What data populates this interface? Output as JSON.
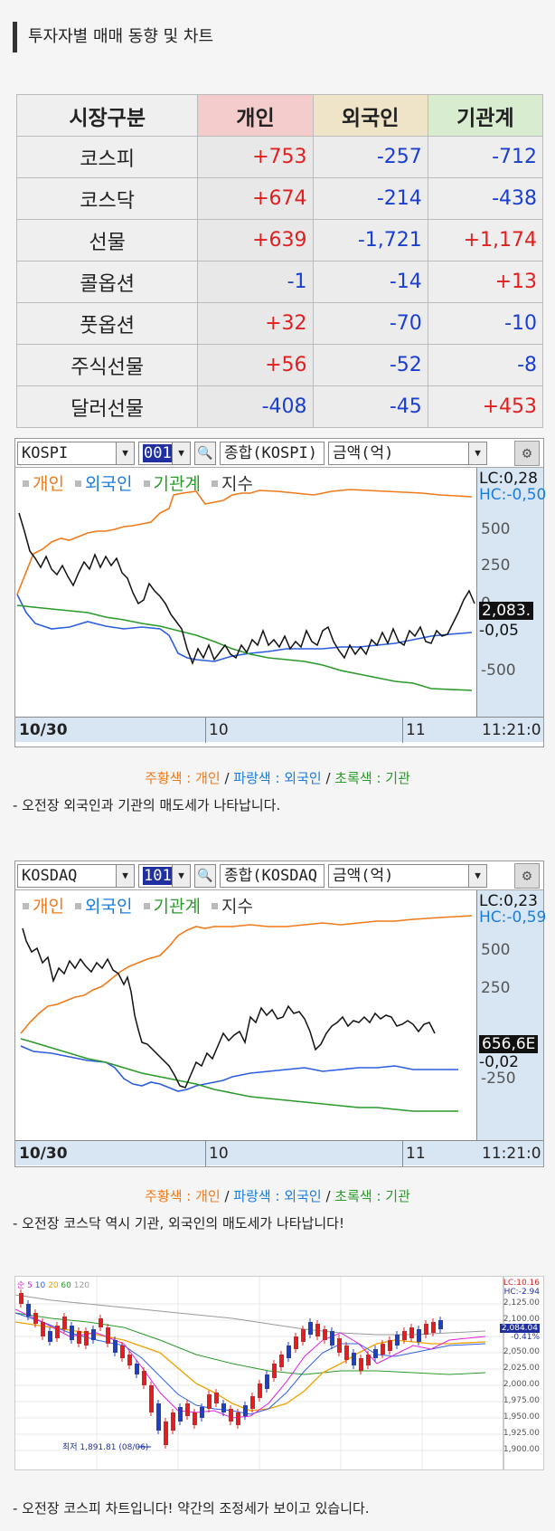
{
  "title": "투자자별 매매 동향 및 차트",
  "table": {
    "headers": [
      "시장구분",
      "개인",
      "외국인",
      "기관계"
    ],
    "rows": [
      {
        "label": "코스피",
        "ind": "+753",
        "frn": "-257",
        "ins": "-712"
      },
      {
        "label": "코스닥",
        "ind": "+674",
        "frn": "-214",
        "ins": "-438"
      },
      {
        "label": "선물",
        "ind": "+639",
        "frn": "-1,721",
        "ins": "+1,174"
      },
      {
        "label": "콜옵션",
        "ind": "-1",
        "frn": "-14",
        "ins": "+13"
      },
      {
        "label": "풋옵션",
        "ind": "+32",
        "frn": "-70",
        "ins": "-10"
      },
      {
        "label": "주식선물",
        "ind": "+56",
        "frn": "-52",
        "ins": "-8"
      },
      {
        "label": "달러선물",
        "ind": "-408",
        "frn": "-45",
        "ins": "+453"
      }
    ]
  },
  "kospi_chart": {
    "market": "KOSPI",
    "code": "001",
    "type": "종합(KOSPI)",
    "unit": "금액(억)",
    "legend": [
      "개인",
      "외국인",
      "기관계",
      "지수"
    ],
    "lc": "LC:0,28",
    "hc": "HC:-0,50",
    "yticks": [
      "500",
      "250",
      "0",
      "-250",
      "-500"
    ],
    "price": "2,083.",
    "pct": "-0,05",
    "xlabels": [
      "10/30",
      "10",
      "11",
      "11:21:0"
    ]
  },
  "kosdaq_chart": {
    "market": "KOSDAQ",
    "code": "101",
    "type": "종합(KOSDAQ",
    "unit": "금액(억)",
    "legend": [
      "개인",
      "외국인",
      "기관계",
      "지수"
    ],
    "lc": "LC:0,23",
    "hc": "HC:-0,59",
    "yticks": [
      "500",
      "250",
      "0",
      "-250"
    ],
    "price": "656,6E",
    "pct": "-0,02",
    "xlabels": [
      "10/30",
      "10",
      "11",
      "11:21:0"
    ]
  },
  "caption1": {
    "or": "주황색 : 개인",
    "bl": "파랑색 : 외국인",
    "gr": "초록색 : 기관",
    "sep": " / "
  },
  "note1": "- 오전장 외국인과 기관의 매도세가 나타납니다.",
  "caption2": {
    "or": "주황색 : 개인",
    "bl": "파랑색 : 외국인",
    "gr": "초록색 : 기관",
    "sep": " / "
  },
  "note2": "- 오전장 코스닥 역시 기관, 외국인의 매도세가 나타납니다!",
  "candle_chart": {
    "legend": [
      "순",
      "5",
      "10",
      "20",
      "60",
      "120"
    ],
    "lc": "LC:10.16",
    "hc": "HC:-2.94",
    "price": "2,084.04",
    "pct": "-0.41%",
    "yticks": [
      "2,100.00",
      "2,075.00",
      "2,050.00",
      "2,025.00",
      "2,000.00",
      "1,975.00",
      "1,950.00",
      "1,925.00",
      "1,900.00",
      "2,125.00"
    ],
    "low_label": "최저 1,891.81 (08/06)"
  },
  "note3": "- 오전장 코스피 차트입니다! 약간의 조정세가 보이고 있습니다.",
  "colors": {
    "individual": "#f07a1a",
    "foreign": "#1a7de0",
    "institution": "#2a9a2a",
    "index": "#111111"
  }
}
